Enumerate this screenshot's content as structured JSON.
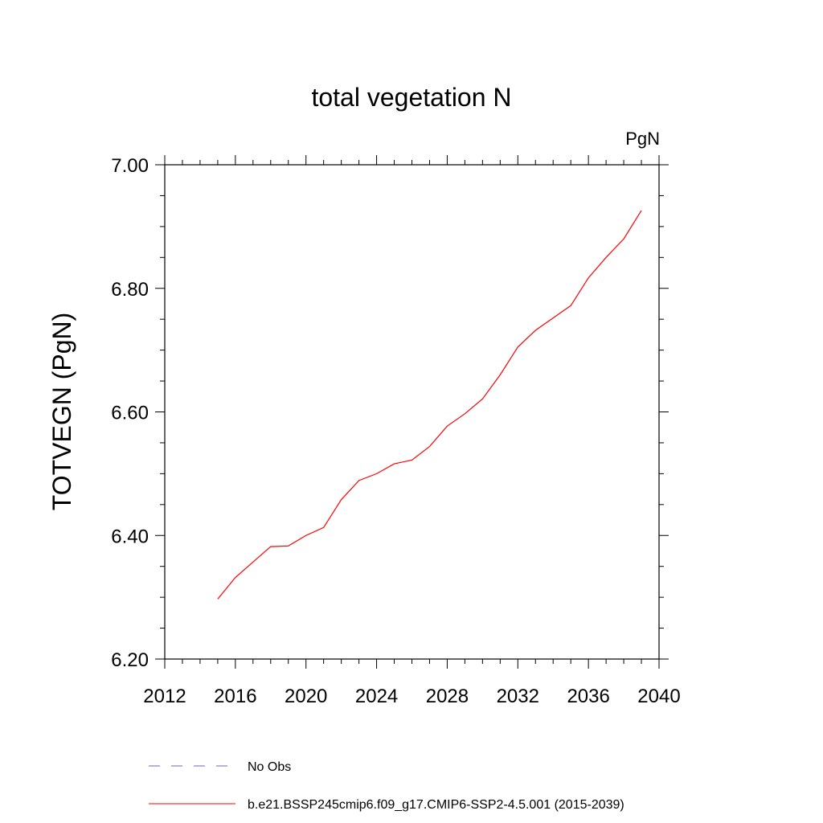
{
  "chart_data": {
    "type": "line",
    "title": "total vegetation N",
    "units": "PgN",
    "ylabel": "TOTVEGN  (PgN)",
    "xlabel": "",
    "xlim": [
      2012,
      2040
    ],
    "ylim": [
      6.2,
      7.0
    ],
    "x_ticks": [
      "2012",
      "2016",
      "2020",
      "2024",
      "2028",
      "2032",
      "2036",
      "2040"
    ],
    "y_ticks": [
      "6.20",
      "6.40",
      "6.60",
      "6.80",
      "7.00"
    ],
    "grid": false,
    "legend_position": "bottom",
    "series": [
      {
        "name": "b.e21.BSSP245cmip6.f09_g17.CMIP6-SSP2-4.5.001 (2015-2039)",
        "color": "#ff0000",
        "style": "solid",
        "x": [
          2015,
          2016,
          2017,
          2018,
          2019,
          2020,
          2021,
          2022,
          2023,
          2024,
          2025,
          2026,
          2027,
          2028,
          2029,
          2030,
          2031,
          2032,
          2033,
          2034,
          2035,
          2036,
          2037,
          2038,
          2039
        ],
        "y": [
          6.297,
          6.332,
          6.357,
          6.382,
          6.383,
          6.4,
          6.413,
          6.458,
          6.489,
          6.5,
          6.516,
          6.522,
          6.544,
          6.577,
          6.597,
          6.621,
          6.66,
          6.705,
          6.732,
          6.752,
          6.772,
          6.817,
          6.85,
          6.88,
          6.926
        ]
      }
    ],
    "legend": [
      {
        "label": "No Obs",
        "color": "#6666cc",
        "style": "dashed"
      },
      {
        "label": "b.e21.BSSP245cmip6.f09_g17.CMIP6-SSP2-4.5.001 (2015-2039)",
        "color": "#ff0000",
        "style": "solid"
      }
    ]
  }
}
